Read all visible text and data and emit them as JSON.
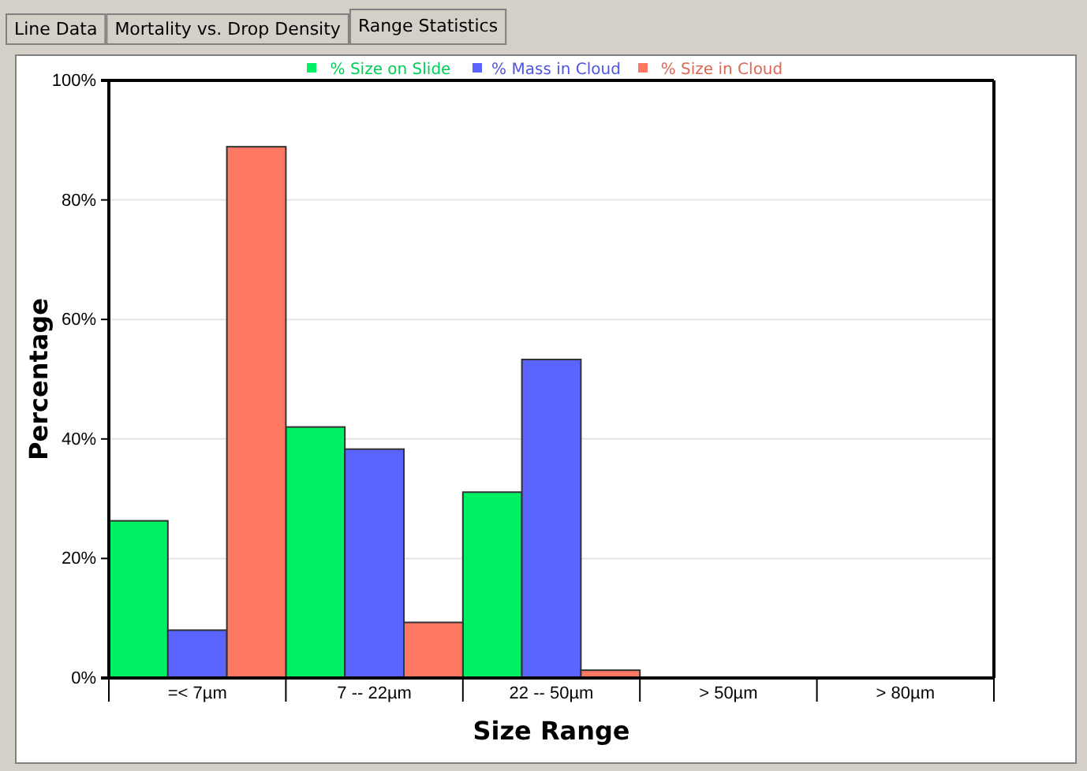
{
  "chart_data": {
    "type": "bar",
    "xlabel": "Size Range",
    "ylabel": "Percentage",
    "categories": [
      "=< 7µm",
      "7 -- 22µm",
      "22 -- 50µm",
      "> 50µm",
      "> 80µm"
    ],
    "series": [
      {
        "name": "% Size on Slide",
        "color": "#00f064",
        "values": [
          26.3,
          42.0,
          31.1,
          0,
          0
        ]
      },
      {
        "name": "% Mass in Cloud",
        "color": "#5a64ff",
        "values": [
          8.0,
          38.3,
          53.3,
          0,
          0
        ]
      },
      {
        "name": "% Size in Cloud",
        "color": "#ff7864",
        "values": [
          88.9,
          9.3,
          1.3,
          0,
          0
        ]
      }
    ],
    "ylim": [
      0,
      100
    ],
    "yticks": [
      {
        "value": 0,
        "label": "0%"
      },
      {
        "value": 20,
        "label": "20%"
      },
      {
        "value": 40,
        "label": "40%"
      },
      {
        "value": 60,
        "label": "60%"
      },
      {
        "value": 80,
        "label": "80%"
      },
      {
        "value": 100,
        "label": "100%"
      }
    ],
    "grid": "y",
    "legend": "top",
    "annotations": [
      "Line Data",
      "Mortality vs. Drop Density",
      "Range Statistics"
    ]
  }
}
